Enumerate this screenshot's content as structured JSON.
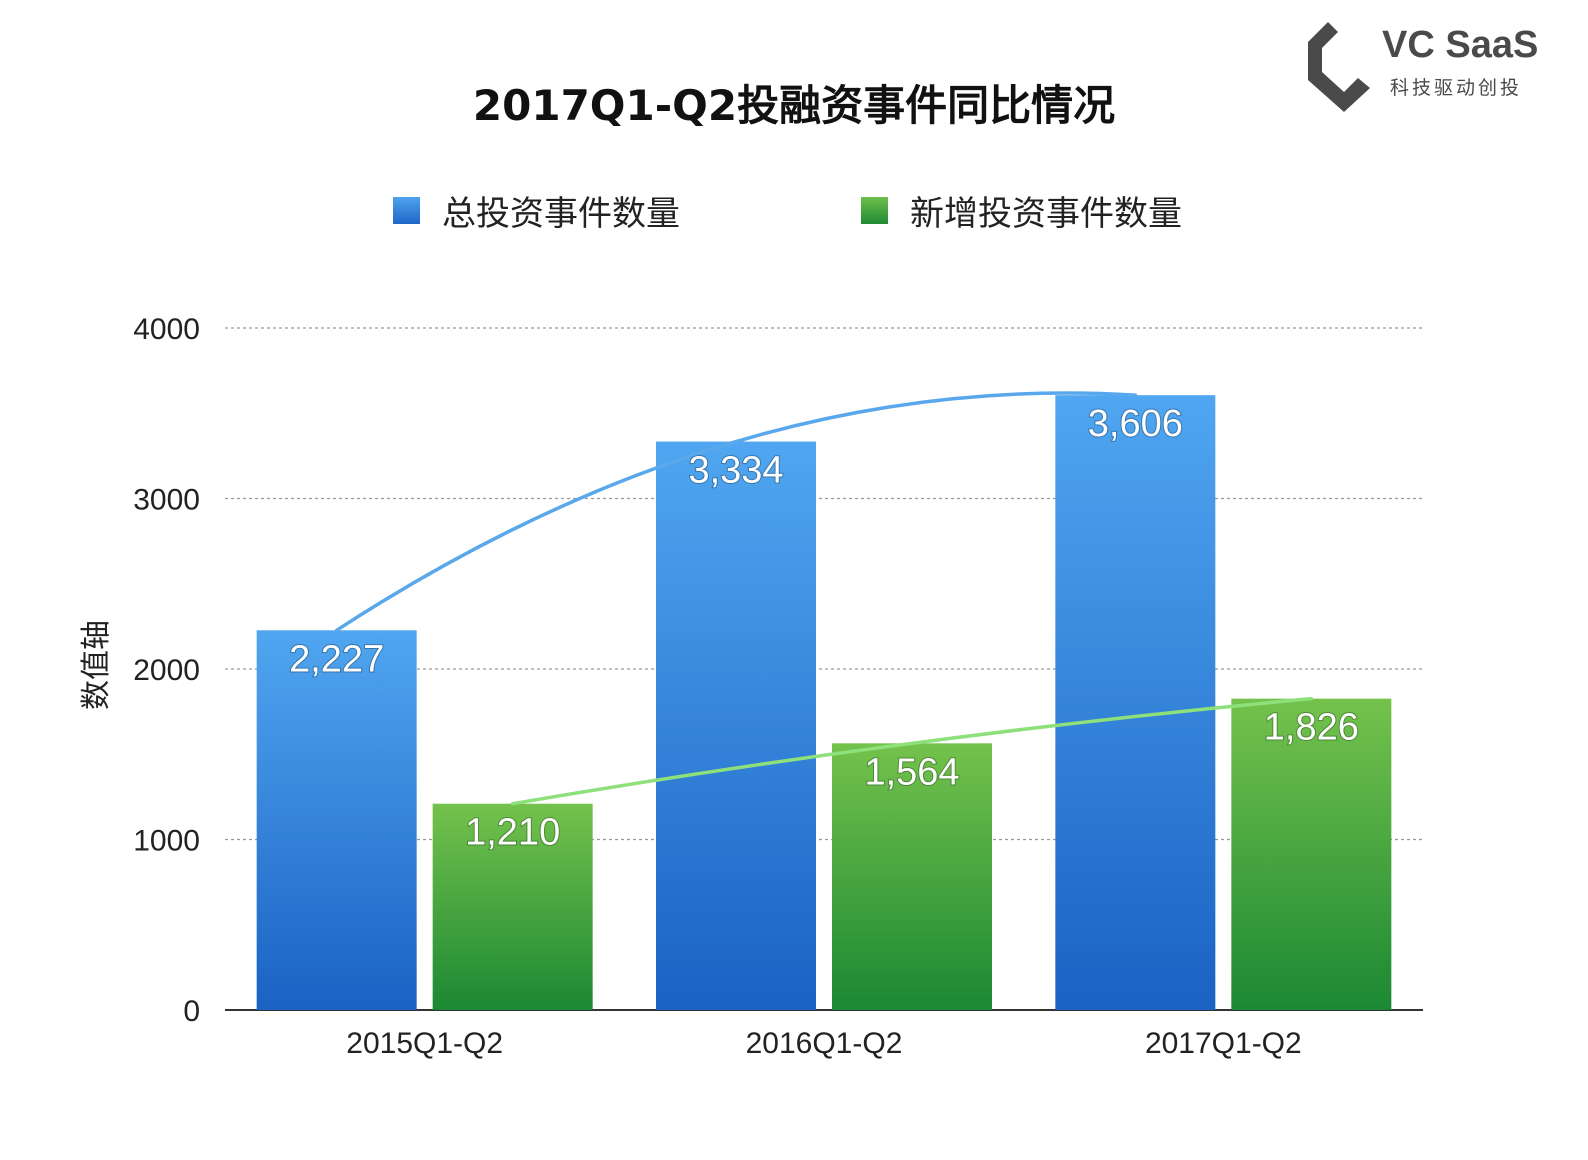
{
  "title": "2017Q1-Q2投融资事件同比情况",
  "logo": {
    "name": "VC SaaS",
    "slogan": "科技驱动创投"
  },
  "chart_data": {
    "type": "bar",
    "title": "2017Q1-Q2投融资事件同比情况",
    "categories": [
      "2015Q1-Q2",
      "2016Q1-Q2",
      "2017Q1-Q2"
    ],
    "series": [
      {
        "name": "总投资事件数量",
        "values": [
          2227,
          3334,
          3606
        ],
        "labels": [
          "2,227",
          "3,334",
          "3,606"
        ],
        "color": "#2f86e0"
      },
      {
        "name": "新增投资事件数量",
        "values": [
          1210,
          1564,
          1826
        ],
        "labels": [
          "1,210",
          "1,564",
          "1,826"
        ],
        "color": "#3fa43f"
      }
    ],
    "trendlines": true,
    "xlabel": "",
    "ylabel": "数值轴",
    "ylim": [
      0,
      4000
    ],
    "yticks": [
      0,
      1000,
      2000,
      3000,
      4000
    ],
    "grid": true,
    "legend_position": "top"
  }
}
